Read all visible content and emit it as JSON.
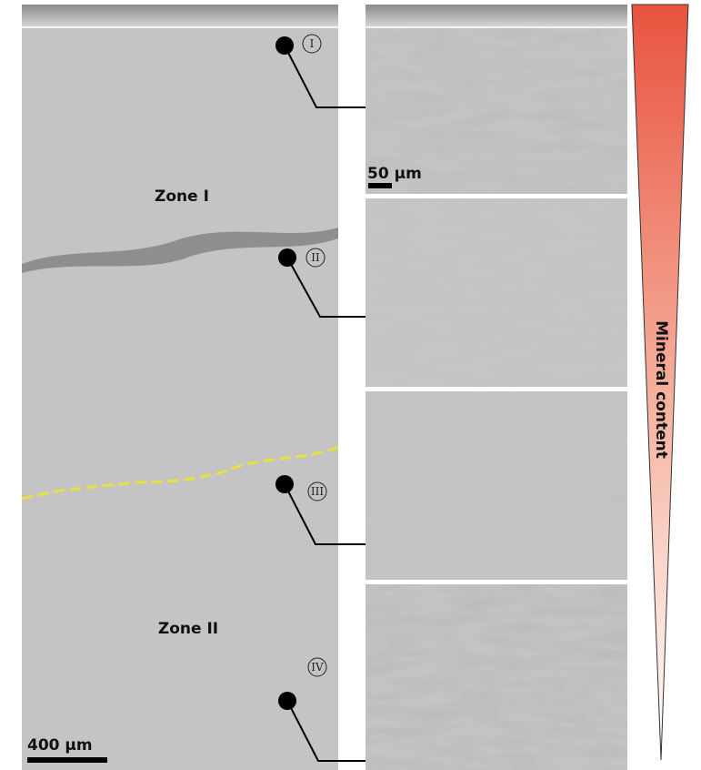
{
  "zones": [
    "Zone I",
    "Zone II"
  ],
  "markers": [
    "I",
    "II",
    "III",
    "IV"
  ],
  "scale_bars": {
    "overview": "400 μm",
    "detail": "50 μm"
  },
  "gradient_label": "Mineral content"
}
